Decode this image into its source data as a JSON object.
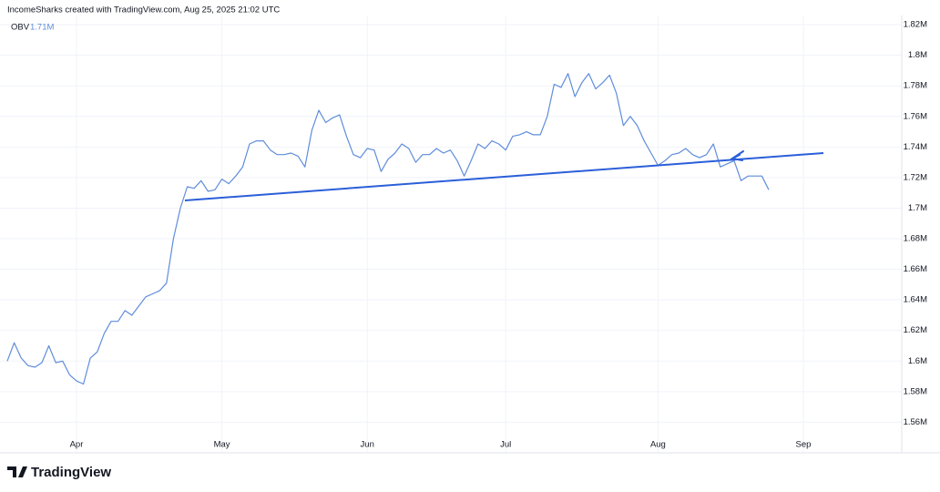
{
  "header": {
    "attribution": "IncomeSharks created with TradingView.com, Aug 25, 2025 21:02 UTC"
  },
  "footer": {
    "logo": "TradingView"
  },
  "chart_data": {
    "type": "line",
    "legend_name": "OBV",
    "legend_value": {
      "value": 1.71,
      "label": "1.71M"
    },
    "grid": true,
    "categories": [
      null,
      null,
      null,
      null,
      null,
      null,
      null,
      null,
      null,
      null,
      "Apr",
      null,
      null,
      null,
      null,
      null,
      null,
      null,
      null,
      null,
      null,
      null,
      null,
      null,
      null,
      null,
      null,
      null,
      null,
      null,
      null,
      "May",
      null,
      null,
      null,
      null,
      null,
      null,
      null,
      null,
      null,
      null,
      null,
      null,
      null,
      null,
      null,
      null,
      null,
      null,
      null,
      null,
      "Jun",
      null,
      null,
      null,
      null,
      null,
      null,
      null,
      null,
      null,
      null,
      null,
      null,
      null,
      null,
      null,
      null,
      null,
      null,
      null,
      "Jul",
      null,
      null,
      null,
      null,
      null,
      null,
      null,
      null,
      null,
      null,
      null,
      null,
      null,
      null,
      null,
      null,
      null,
      null,
      null,
      null,
      null,
      "Aug",
      null,
      null,
      null,
      null,
      null,
      null,
      null,
      null,
      null,
      null,
      null,
      null,
      null,
      null,
      null,
      null,
      null,
      null,
      null,
      null,
      "Sep",
      null,
      null,
      null,
      null,
      null,
      null,
      null,
      null,
      null,
      null,
      null,
      null,
      null
    ],
    "series": [
      {
        "name": "OBV",
        "color": "#5f8ddb",
        "values": [
          1.6,
          1.612,
          1.602,
          1.597,
          1.596,
          1.599,
          1.61,
          1.599,
          1.6,
          1.591,
          1.587,
          1.585,
          1.602,
          1.606,
          1.618,
          1.626,
          1.626,
          1.633,
          1.63,
          1.636,
          1.642,
          1.644,
          1.646,
          1.651,
          1.68,
          1.7,
          1.714,
          1.713,
          1.718,
          1.711,
          1.712,
          1.719,
          1.716,
          1.721,
          1.727,
          1.742,
          1.744,
          1.744,
          1.738,
          1.735,
          1.735,
          1.736,
          1.734,
          1.727,
          1.751,
          1.764,
          1.756,
          1.759,
          1.761,
          1.747,
          1.735,
          1.733,
          1.739,
          1.738,
          1.724,
          1.732,
          1.736,
          1.742,
          1.739,
          1.73,
          1.735,
          1.735,
          1.739,
          1.736,
          1.738,
          1.731,
          1.721,
          1.731,
          1.742,
          1.739,
          1.744,
          1.742,
          1.738,
          1.747,
          1.748,
          1.75,
          1.748,
          1.748,
          1.76,
          1.781,
          1.779,
          1.788,
          1.773,
          1.782,
          1.788,
          1.778,
          1.782,
          1.787,
          1.775,
          1.754,
          1.76,
          1.754,
          1.744,
          1.736,
          1.728,
          1.731,
          1.735,
          1.736,
          1.739,
          1.735,
          1.733,
          1.735,
          1.742,
          1.727,
          1.729,
          1.731,
          1.718,
          1.721,
          1.721,
          1.721,
          1.712,
          null,
          null,
          null,
          null,
          null,
          null,
          null,
          null,
          null,
          null,
          null,
          null,
          null,
          null,
          null,
          null,
          null,
          null
        ]
      }
    ],
    "ylim": [
      1.54,
      1.826
    ],
    "yticks": [
      {
        "value": 1.56,
        "label": "1.56M"
      },
      {
        "value": 1.58,
        "label": "1.58M"
      },
      {
        "value": 1.6,
        "label": "1.6M"
      },
      {
        "value": 1.62,
        "label": "1.62M"
      },
      {
        "value": 1.64,
        "label": "1.64M"
      },
      {
        "value": 1.66,
        "label": "1.66M"
      },
      {
        "value": 1.68,
        "label": "1.68M"
      },
      {
        "value": 1.7,
        "label": "1.7M"
      },
      {
        "value": 1.72,
        "label": "1.72M"
      },
      {
        "value": 1.74,
        "label": "1.74M"
      },
      {
        "value": 1.76,
        "label": "1.76M"
      },
      {
        "value": 1.78,
        "label": "1.78M"
      },
      {
        "value": 1.8,
        "label": "1.8M"
      },
      {
        "value": 1.82,
        "label": "1.82M"
      }
    ]
  }
}
